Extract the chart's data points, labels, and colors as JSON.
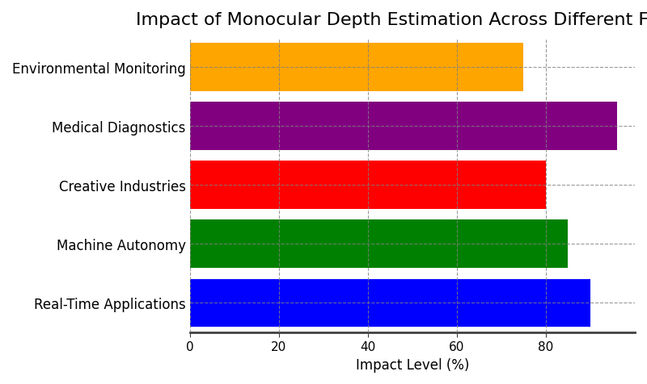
{
  "title": "Impact of Monocular Depth Estimation Across Different Fields",
  "categories": [
    "Real-Time Applications",
    "Machine Autonomy",
    "Creative Industries",
    "Medical Diagnostics",
    "Environmental Monitoring"
  ],
  "values": [
    90,
    85,
    80,
    96,
    75
  ],
  "colors": [
    "#0000ff",
    "#008000",
    "#ff0000",
    "#800080",
    "#ffa500"
  ],
  "xlabel": "Impact Level (%)",
  "xlim": [
    0,
    100
  ],
  "xticks": [
    0,
    20,
    40,
    60,
    80
  ],
  "background_color": "#ffffff",
  "title_fontsize": 16,
  "label_fontsize": 12,
  "tick_fontsize": 11,
  "bar_height": 0.82,
  "grid_color": "#808080",
  "grid_style": "--"
}
